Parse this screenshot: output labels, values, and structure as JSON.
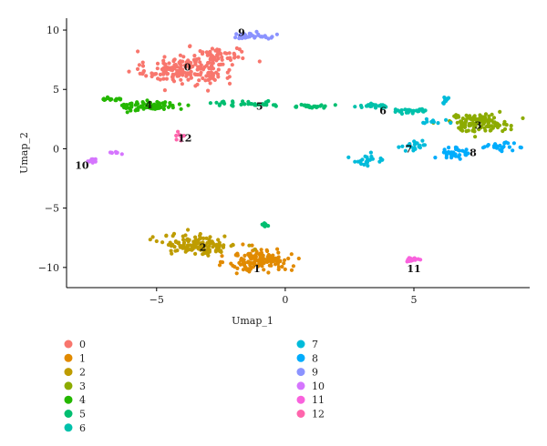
{
  "chart_data": {
    "type": "scatter",
    "title": "",
    "xlabel": "Umap_1",
    "ylabel": "Umap_2",
    "xlim": [
      -8.5,
      9.5
    ],
    "ylim": [
      -11.7,
      11
    ],
    "xticks": [
      -5,
      0,
      5
    ],
    "yticks": [
      -10,
      -5,
      0,
      5,
      10
    ],
    "xtick_labels": [
      "−5",
      "0",
      "5"
    ],
    "ytick_labels": [
      "−10",
      "−5",
      "0",
      "5",
      "10"
    ],
    "grid": false,
    "legend_position": "bottom",
    "clusters": [
      {
        "name": "0",
        "color": "#F8766D",
        "centroid": [
          -3.8,
          6.9
        ],
        "label_at": [
          -3.8,
          6.9
        ],
        "blobs": [
          [
            -3.7,
            6.8,
            1.4,
            1.2,
            170
          ],
          [
            -2.5,
            8.0,
            0.8,
            0.6,
            40
          ],
          [
            -4.6,
            6.3,
            0.7,
            0.5,
            30
          ]
        ]
      },
      {
        "name": "1",
        "color": "#E18A00",
        "centroid": [
          -1.0,
          -9.5
        ],
        "label_at": [
          -1.1,
          -10.1
        ],
        "blobs": [
          [
            -1.0,
            -9.4,
            1.0,
            0.8,
            150
          ]
        ]
      },
      {
        "name": "2",
        "color": "#BE9C00",
        "centroid": [
          -3.3,
          -8.0
        ],
        "label_at": [
          -3.2,
          -8.3
        ],
        "blobs": [
          [
            -3.3,
            -8.1,
            1.2,
            0.7,
            140
          ]
        ]
      },
      {
        "name": "3",
        "color": "#8CAB00",
        "centroid": [
          7.5,
          2.2
        ],
        "label_at": [
          7.5,
          2.0
        ],
        "blobs": [
          [
            7.5,
            2.2,
            1.0,
            0.6,
            120
          ]
        ]
      },
      {
        "name": "4",
        "color": "#24B700",
        "centroid": [
          -5.3,
          3.7
        ],
        "label_at": [
          -5.3,
          3.7
        ],
        "blobs": [
          [
            -5.3,
            3.6,
            0.9,
            0.35,
            80
          ],
          [
            -6.7,
            4.2,
            0.3,
            0.15,
            15
          ]
        ]
      },
      {
        "name": "5",
        "color": "#00BE70",
        "centroid": [
          -1.0,
          3.6
        ],
        "label_at": [
          -1.0,
          3.6
        ],
        "blobs": [
          [
            -1.5,
            3.8,
            1.6,
            0.18,
            35
          ],
          [
            1.0,
            3.6,
            0.7,
            0.15,
            25
          ],
          [
            -0.8,
            -6.5,
            0.12,
            0.15,
            6
          ]
        ]
      },
      {
        "name": "6",
        "color": "#00C1AB",
        "centroid": [
          3.8,
          3.2
        ],
        "label_at": [
          3.8,
          3.2
        ],
        "blobs": [
          [
            3.4,
            3.6,
            0.5,
            0.15,
            25
          ],
          [
            5.0,
            3.2,
            0.8,
            0.15,
            30
          ]
        ]
      },
      {
        "name": "7",
        "color": "#00BBDA",
        "centroid": [
          4.8,
          0.3
        ],
        "label_at": [
          4.8,
          0.0
        ],
        "blobs": [
          [
            3.2,
            -1.0,
            0.6,
            0.4,
            25
          ],
          [
            5.0,
            0.3,
            0.5,
            0.4,
            20
          ],
          [
            6.3,
            4.1,
            0.12,
            0.3,
            10
          ],
          [
            5.8,
            2.2,
            0.4,
            0.2,
            10
          ]
        ]
      },
      {
        "name": "8",
        "color": "#00ACFC",
        "centroid": [
          7.0,
          -0.3
        ],
        "label_at": [
          7.3,
          -0.3
        ],
        "blobs": [
          [
            6.5,
            -0.4,
            0.6,
            0.5,
            35
          ],
          [
            8.3,
            0.2,
            0.5,
            0.25,
            25
          ]
        ]
      },
      {
        "name": "9",
        "color": "#8B93FF",
        "centroid": [
          -1.4,
          9.6
        ],
        "label_at": [
          -1.7,
          9.8
        ],
        "blobs": [
          [
            -1.4,
            9.5,
            0.7,
            0.25,
            40
          ]
        ]
      },
      {
        "name": "10",
        "color": "#D575FE",
        "centroid": [
          -7.6,
          -1.2
        ],
        "label_at": [
          -7.9,
          -1.4
        ],
        "blobs": [
          [
            -7.5,
            -1.0,
            0.2,
            0.2,
            12
          ],
          [
            -6.6,
            -0.4,
            0.35,
            0.12,
            8
          ]
        ]
      },
      {
        "name": "11",
        "color": "#F962DD",
        "centroid": [
          5.0,
          -9.3
        ],
        "label_at": [
          5.0,
          -10.1
        ],
        "blobs": [
          [
            5.0,
            -9.3,
            0.2,
            0.15,
            18
          ]
        ]
      },
      {
        "name": "12",
        "color": "#FF65AC",
        "centroid": [
          -4.0,
          1.0
        ],
        "label_at": [
          -3.9,
          0.9
        ],
        "blobs": [
          [
            -4.1,
            1.1,
            0.15,
            0.25,
            8
          ]
        ]
      }
    ]
  }
}
